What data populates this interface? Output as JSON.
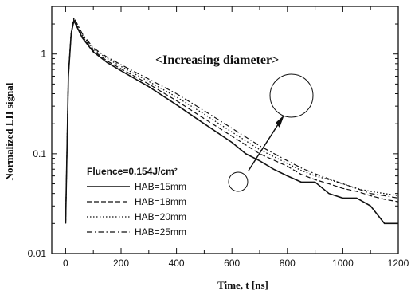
{
  "chart_data": {
    "type": "line",
    "xlabel": "Time, t [ns]",
    "ylabel": "Normalized LII signal",
    "xlim": [
      -50,
      1200
    ],
    "ylim": [
      0.01,
      3
    ],
    "yscale": "log",
    "x_ticks": [
      0,
      200,
      400,
      600,
      800,
      1000,
      1200
    ],
    "y_ticks": [
      0.01,
      0.1,
      1
    ],
    "x_tick_labels": [
      "0",
      "200",
      "400",
      "600",
      "800",
      "1000",
      "1200"
    ],
    "y_tick_labels": [
      "0.01",
      "0.1",
      "1"
    ],
    "grid": false,
    "legend_position": "lower-left",
    "legend_title": "Fluence=0.154J/cm²",
    "annotation": "<Increasing diameter>",
    "series": [
      {
        "name": "HAB=15mm",
        "dash": "solid",
        "x": [
          0,
          10,
          20,
          30,
          40,
          60,
          100,
          150,
          200,
          300,
          400,
          500,
          600,
          650,
          700,
          750,
          800,
          850,
          900,
          950,
          1000,
          1050,
          1100,
          1150,
          1200
        ],
        "y": [
          0.02,
          0.6,
          1.6,
          2.15,
          1.9,
          1.45,
          1.05,
          0.82,
          0.68,
          0.47,
          0.31,
          0.2,
          0.13,
          0.1,
          0.085,
          0.07,
          0.06,
          0.052,
          0.052,
          0.04,
          0.036,
          0.036,
          0.03,
          0.02,
          0.02
        ]
      },
      {
        "name": "HAB=18mm",
        "dash": "dashed",
        "x": [
          0,
          10,
          20,
          30,
          40,
          60,
          100,
          150,
          200,
          300,
          400,
          500,
          600,
          700,
          800,
          850,
          900,
          950,
          1000,
          1050,
          1100,
          1150,
          1200
        ],
        "y": [
          0.02,
          0.6,
          1.6,
          2.2,
          1.95,
          1.5,
          1.08,
          0.85,
          0.71,
          0.5,
          0.34,
          0.225,
          0.15,
          0.1,
          0.075,
          0.062,
          0.055,
          0.05,
          0.045,
          0.042,
          0.038,
          0.035,
          0.033
        ]
      },
      {
        "name": "HAB=20mm",
        "dash": "dotted",
        "x": [
          0,
          10,
          20,
          30,
          40,
          60,
          100,
          150,
          200,
          300,
          400,
          500,
          600,
          700,
          800,
          850,
          900,
          950,
          1000,
          1050,
          1100,
          1150,
          1200
        ],
        "y": [
          0.02,
          0.62,
          1.65,
          2.25,
          2.0,
          1.55,
          1.12,
          0.9,
          0.75,
          0.53,
          0.37,
          0.25,
          0.165,
          0.11,
          0.08,
          0.068,
          0.06,
          0.055,
          0.05,
          0.045,
          0.042,
          0.04,
          0.038
        ]
      },
      {
        "name": "HAB=25mm",
        "dash": "dash-dot",
        "x": [
          0,
          10,
          20,
          30,
          40,
          60,
          100,
          150,
          200,
          300,
          400,
          500,
          600,
          700,
          800,
          850,
          900,
          950,
          1000,
          1050,
          1100,
          1150,
          1200
        ],
        "y": [
          0.02,
          0.62,
          1.65,
          2.3,
          2.05,
          1.6,
          1.15,
          0.93,
          0.78,
          0.56,
          0.4,
          0.27,
          0.18,
          0.12,
          0.085,
          0.072,
          0.063,
          0.056,
          0.05,
          0.045,
          0.04,
          0.038,
          0.036
        ]
      }
    ]
  }
}
